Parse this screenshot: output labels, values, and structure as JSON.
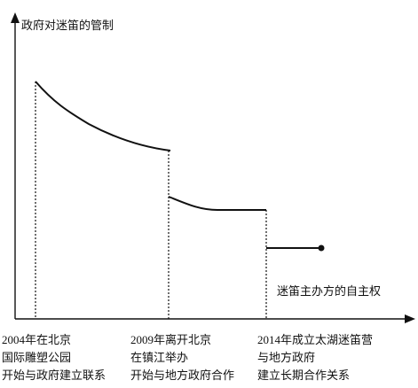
{
  "y_axis_label": "政府对迷笛的管制",
  "annotation": "迷笛主办方的自主权",
  "events": [
    {
      "lines": [
        "2004年在北京",
        "国际雕塑公园",
        "开始与政府建立联系"
      ]
    },
    {
      "lines": [
        "2009年离开北京",
        "在镇江举办",
        "开始与地方政府合作"
      ]
    },
    {
      "lines": [
        "2014年成立太湖迷笛营",
        "与地方政府",
        "建立长期合作关系"
      ]
    }
  ]
}
